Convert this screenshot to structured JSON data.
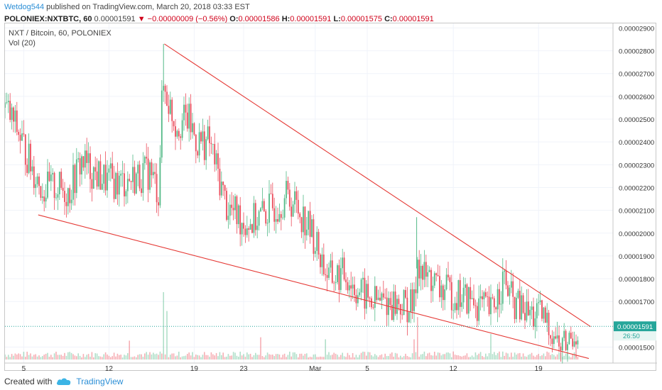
{
  "header": {
    "author": "Wetdog544",
    "published_text": "published on TradingView.com, March 20, 2018 03:33 EST",
    "symbol_line": "POLONIEX:NXTBTC, 60",
    "last_price": "0.00001591",
    "change": "▼ −0.00000009 (−0.56%)",
    "o_label": "O:",
    "o_value": "0.00001586",
    "h_label": "H:",
    "h_value": "0.00001591",
    "l_label": "L:",
    "l_value": "0.00001575",
    "c_label": "C:",
    "c_value": "0.00001591"
  },
  "legend": {
    "title": "NXT / Bitcoin, 60, POLONIEX",
    "volume": "Vol (20)"
  },
  "footer": {
    "created_with": "Created with",
    "brand": "TradingView"
  },
  "colors": {
    "up": "#53b987",
    "down": "#eb4d5c",
    "trendline": "#e53935",
    "price_line": "#26a69a",
    "author": "#2a8ed6",
    "grid": "#f0f3fa"
  },
  "chart_data": {
    "type": "candlestick",
    "title": "NXT / Bitcoin, 60, POLONIEX",
    "x_ticks": [
      "5",
      "12",
      "19",
      "23",
      "Mar",
      "5",
      "12",
      "19"
    ],
    "y_ticks": [
      "0.00002900",
      "0.00002800",
      "0.00002700",
      "0.00002600",
      "0.00002500",
      "0.00002400",
      "0.00002300",
      "0.00002200",
      "0.00002100",
      "0.00002000",
      "0.00001900",
      "0.00001800",
      "0.00001700",
      "0.00001500"
    ],
    "ylim": [
      1.43e-05,
      2.92e-05
    ],
    "current_price": {
      "label": "0.00001591",
      "value": 1.591e-05
    },
    "countdown": "26:50",
    "series": [
      {
        "name": "Price (approx. close)",
        "points": [
          [
            0.0,
            2.55e-05
          ],
          [
            1.5,
            2.45e-05
          ],
          [
            3.0,
            2.3e-05
          ],
          [
            4.5,
            2.19e-05
          ],
          [
            6.0,
            2.2e-05
          ],
          [
            7.5,
            2.18e-05
          ],
          [
            9.0,
            2.32e-05
          ],
          [
            10.5,
            2.26e-05
          ],
          [
            12.0,
            2.23e-05
          ],
          [
            13.5,
            2.22e-05
          ],
          [
            15.0,
            2.24e-05
          ],
          [
            17.0,
            2.27e-05
          ],
          [
            18.0,
            2.18e-05
          ],
          [
            18.5,
            2.65e-05
          ],
          [
            19.0,
            2.6e-05
          ],
          [
            20.0,
            2.48e-05
          ],
          [
            21.5,
            2.5e-05
          ],
          [
            22.5,
            2.4e-05
          ],
          [
            24.0,
            2.4e-05
          ],
          [
            26.0,
            2.12e-05
          ],
          [
            28.0,
            2.05e-05
          ],
          [
            29.0,
            2.05e-05
          ],
          [
            31.0,
            2.1e-05
          ],
          [
            33.0,
            2.16e-05
          ],
          [
            34.0,
            2.13e-05
          ],
          [
            35.0,
            2.07e-05
          ],
          [
            36.0,
            2e-05
          ],
          [
            37.0,
            1.9e-05
          ],
          [
            38.0,
            1.8e-05
          ],
          [
            40.0,
            1.82e-05
          ],
          [
            41.0,
            1.76e-05
          ],
          [
            43.0,
            1.7e-05
          ],
          [
            45.0,
            1.7e-05
          ],
          [
            47.0,
            1.68e-05
          ],
          [
            48.0,
            1.68e-05
          ],
          [
            48.4,
            1.9e-05
          ],
          [
            49.0,
            1.81e-05
          ],
          [
            50.0,
            1.8e-05
          ],
          [
            51.0,
            1.75e-05
          ],
          [
            53.0,
            1.73e-05
          ],
          [
            55.0,
            1.7e-05
          ],
          [
            57.0,
            1.65e-05
          ],
          [
            58.5,
            1.8e-05
          ],
          [
            59.5,
            1.7e-05
          ],
          [
            61.0,
            1.65e-05
          ],
          [
            63.0,
            1.63e-05
          ],
          [
            64.5,
            1.56e-05
          ],
          [
            65.0,
            1.5e-05
          ],
          [
            66.0,
            1.52e-05
          ],
          [
            67.3,
            1.59e-05
          ]
        ]
      },
      {
        "name": "Upper trendline",
        "points": [
          [
            18.7,
            2.83e-05
          ],
          [
            68.7,
            1.59e-05
          ]
        ]
      },
      {
        "name": "Lower trendline",
        "points": [
          [
            3.9,
            2.08e-05
          ],
          [
            68.5,
            1.45e-05
          ]
        ]
      }
    ],
    "volume_spikes": [
      {
        "x": 18.6,
        "v": 1.0
      },
      {
        "x": 19.0,
        "v": 0.72
      },
      {
        "x": 48.3,
        "v": 0.63
      },
      {
        "x": 48.0,
        "v": 0.3
      },
      {
        "x": 57.0,
        "v": 0.38
      },
      {
        "x": 30.0,
        "v": 0.33
      },
      {
        "x": 37.5,
        "v": 0.3
      },
      {
        "x": 14.5,
        "v": 0.28
      }
    ],
    "grid": true,
    "legend_position": "top-left",
    "price_scale_side": "right"
  }
}
